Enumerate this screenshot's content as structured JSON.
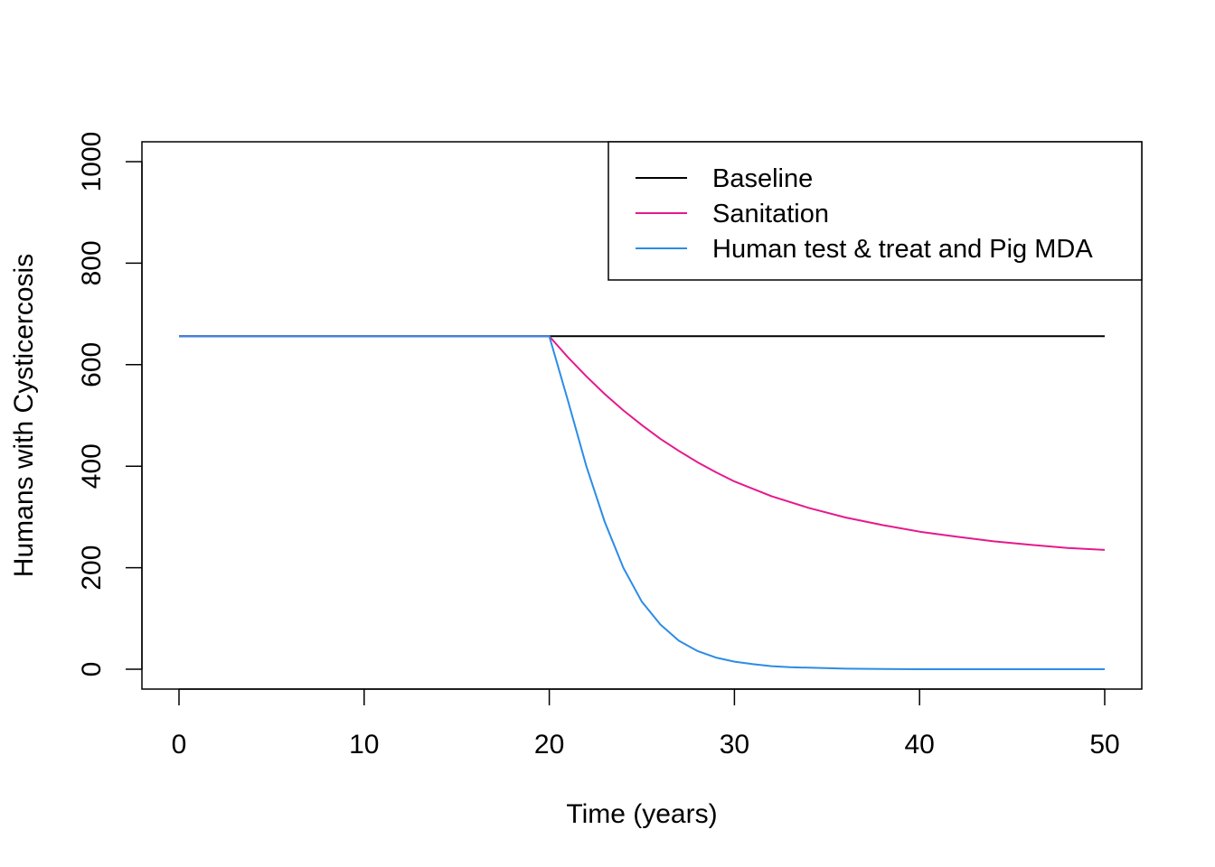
{
  "chart_data": {
    "type": "line",
    "title": "",
    "xlabel": "Time (years)",
    "ylabel": "Humans with Cysticercosis",
    "xlim": [
      0,
      50
    ],
    "ylim": [
      0,
      1000
    ],
    "xticks": [
      0,
      10,
      20,
      30,
      40,
      50
    ],
    "yticks": [
      0,
      200,
      400,
      600,
      800,
      1000
    ],
    "xtick_labels": [
      "0",
      "10",
      "20",
      "30",
      "40",
      "50"
    ],
    "ytick_labels": [
      "0",
      "200",
      "400",
      "600",
      "800",
      "1000"
    ],
    "grid": false,
    "legend_position": "top-right",
    "series": [
      {
        "name": "Baseline",
        "color": "#000000",
        "x": [
          0,
          20,
          50
        ],
        "y": [
          656,
          656,
          656
        ]
      },
      {
        "name": "Sanitation",
        "color": "#E6198C",
        "x": [
          0,
          20,
          21,
          22,
          23,
          24,
          25,
          26,
          27,
          28,
          29,
          30,
          32,
          34,
          36,
          38,
          40,
          42,
          44,
          46,
          48,
          50
        ],
        "y": [
          656,
          656,
          615,
          577,
          542,
          510,
          481,
          454,
          430,
          408,
          388,
          370,
          341,
          318,
          299,
          284,
          271,
          261,
          252,
          245,
          239,
          235
        ]
      },
      {
        "name": "Human test & treat and Pig MDA",
        "color": "#2B8CE6",
        "x": [
          0,
          20,
          21,
          22,
          23,
          24,
          25,
          26,
          27,
          28,
          29,
          30,
          31,
          32,
          33,
          34,
          36,
          38,
          40,
          45,
          50
        ],
        "y": [
          656,
          656,
          530,
          400,
          290,
          200,
          133,
          88,
          56,
          36,
          23,
          15,
          10,
          6,
          4,
          3,
          1,
          0.5,
          0,
          0,
          0
        ]
      }
    ]
  }
}
